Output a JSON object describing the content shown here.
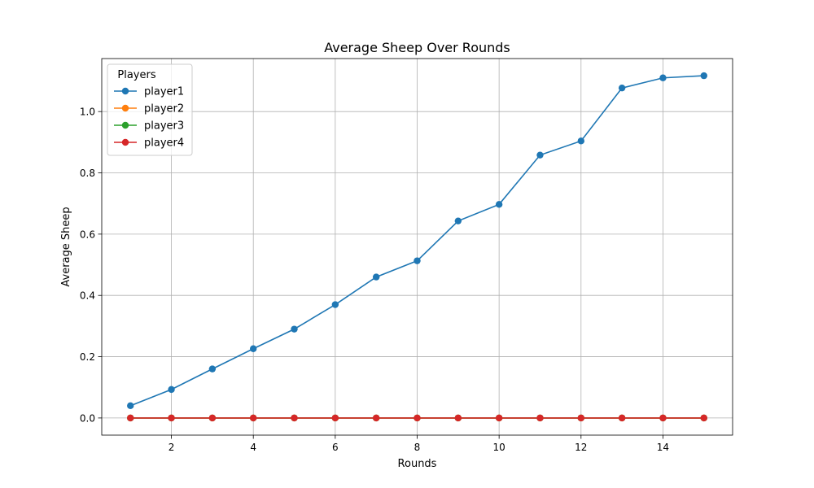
{
  "chart_data": {
    "type": "line",
    "title": "Average Sheep Over Rounds",
    "xlabel": "Rounds",
    "ylabel": "Average Sheep",
    "xlim": [
      0.3,
      15.7
    ],
    "ylim": [
      -0.056,
      1.173
    ],
    "xticks": [
      2,
      4,
      6,
      8,
      10,
      12,
      14
    ],
    "yticks": [
      0.0,
      0.2,
      0.4,
      0.6,
      0.8,
      1.0
    ],
    "xtick_labels": [
      "2",
      "4",
      "6",
      "8",
      "10",
      "12",
      "14"
    ],
    "ytick_labels": [
      "0.0",
      "0.2",
      "0.4",
      "0.6",
      "0.8",
      "1.0"
    ],
    "grid": true,
    "legend": {
      "title": "Players",
      "placement": "top-left"
    },
    "x": [
      1,
      2,
      3,
      4,
      5,
      6,
      7,
      8,
      9,
      10,
      11,
      12,
      13,
      14,
      15
    ],
    "series": [
      {
        "name": "player1",
        "color": "#1f77b4",
        "values": [
          0.04,
          0.093,
          0.16,
          0.226,
          0.29,
          0.37,
          0.46,
          0.513,
          0.643,
          0.697,
          0.858,
          0.904,
          1.077,
          1.11,
          1.117
        ]
      },
      {
        "name": "player2",
        "color": "#ff7f0e",
        "values": [
          0,
          0,
          0,
          0,
          0,
          0,
          0,
          0,
          0,
          0,
          0,
          0,
          0,
          0,
          0
        ]
      },
      {
        "name": "player3",
        "color": "#2ca02c",
        "values": [
          0,
          0,
          0,
          0,
          0,
          0,
          0,
          0,
          0,
          0,
          0,
          0,
          0,
          0,
          0
        ]
      },
      {
        "name": "player4",
        "color": "#d62728",
        "values": [
          0,
          0,
          0,
          0,
          0,
          0,
          0,
          0,
          0,
          0,
          0,
          0,
          0,
          0,
          0
        ]
      }
    ]
  }
}
